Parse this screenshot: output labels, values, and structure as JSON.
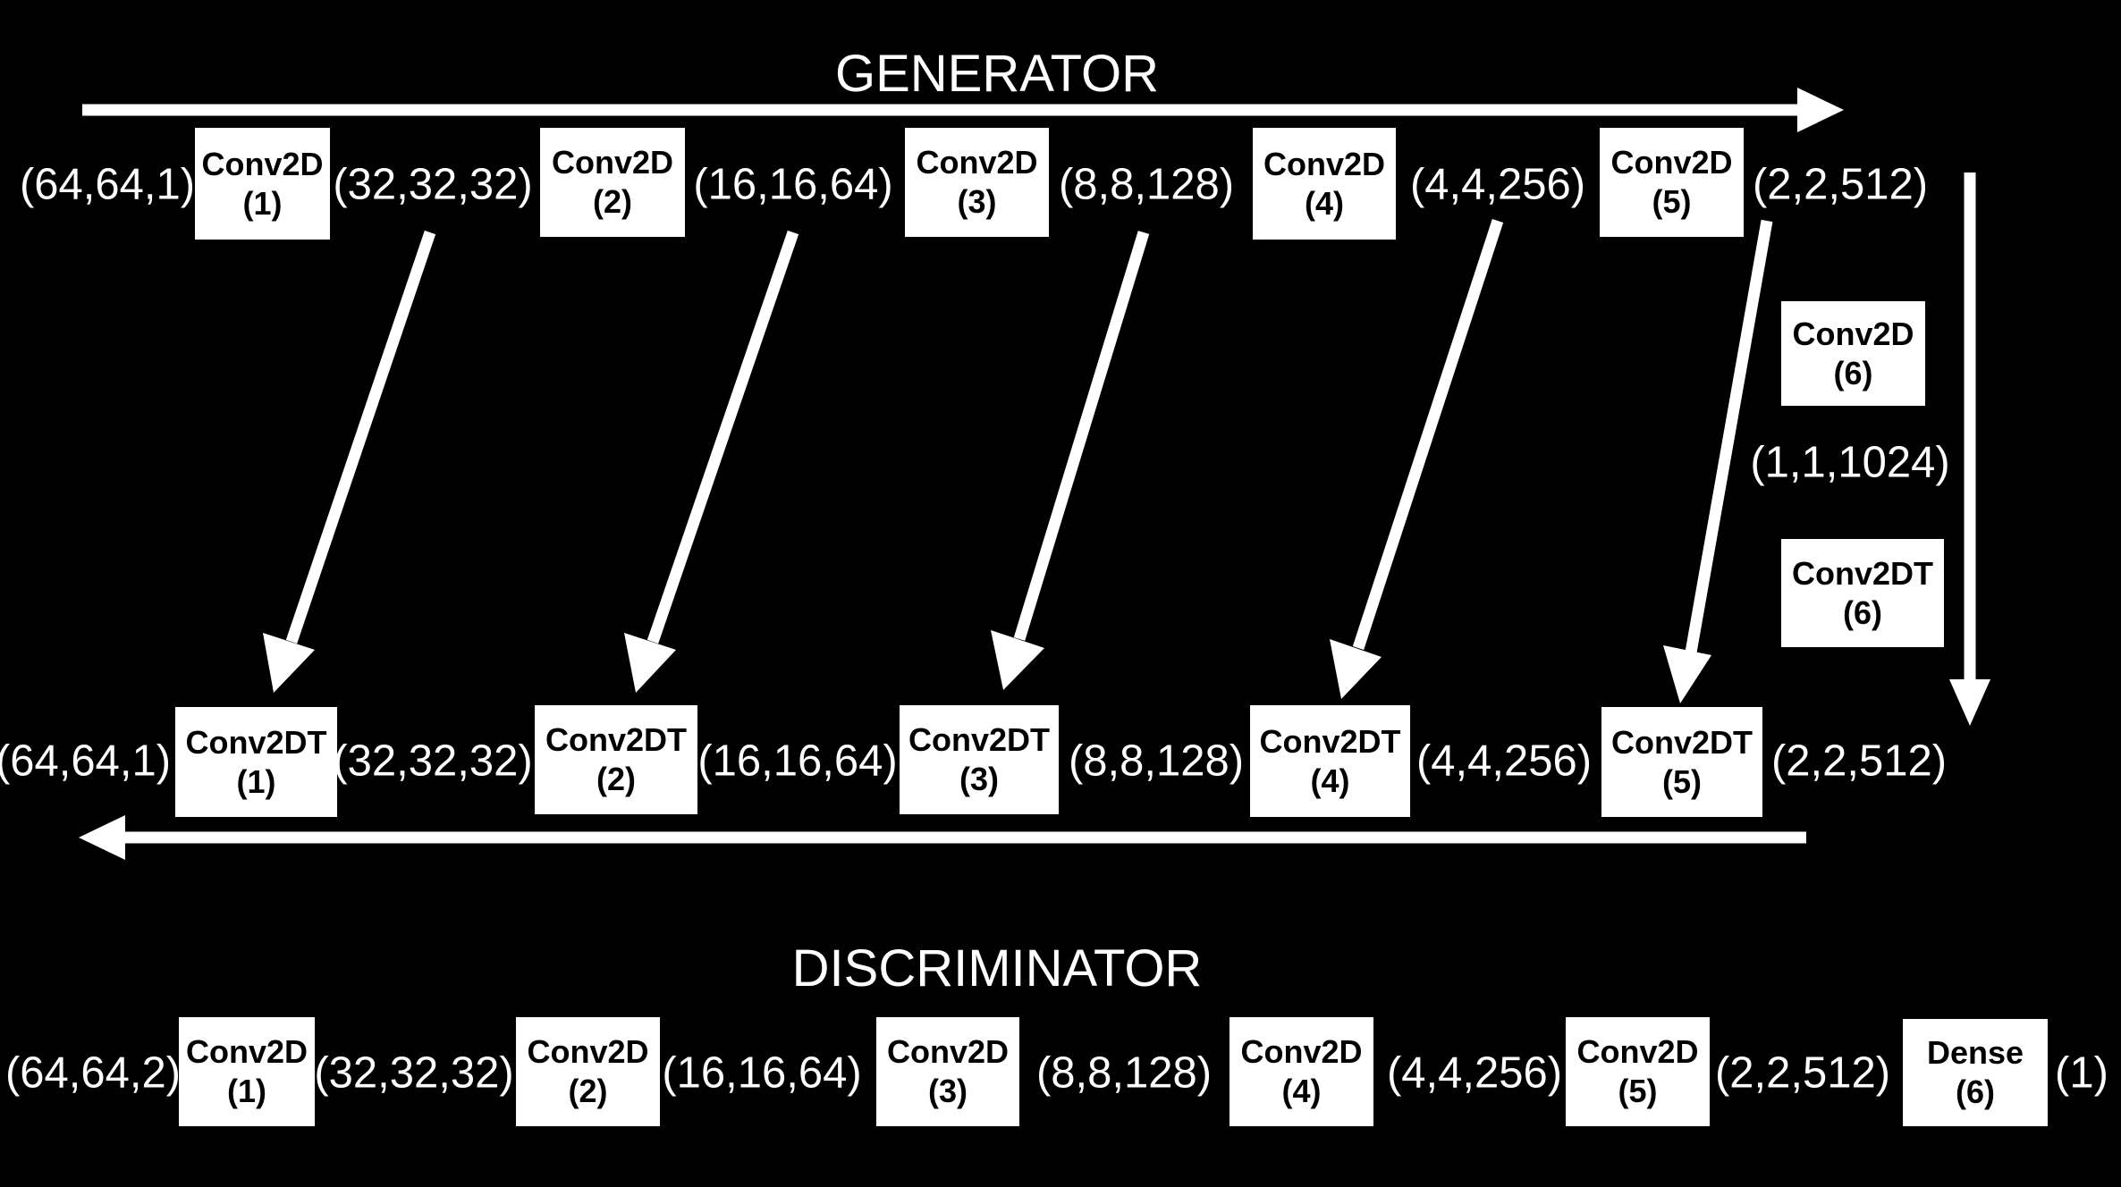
{
  "generator": {
    "title": "GENERATOR",
    "encoder": {
      "shapes": [
        "(64,64,1)",
        "(32,32,32)",
        "(16,16,64)",
        "(8,8,128)",
        "(4,4,256)",
        "(2,2,512)"
      ],
      "layers": [
        {
          "name": "Conv2D",
          "index": "(1)"
        },
        {
          "name": "Conv2D",
          "index": "(2)"
        },
        {
          "name": "Conv2D",
          "index": "(3)"
        },
        {
          "name": "Conv2D",
          "index": "(4)"
        },
        {
          "name": "Conv2D",
          "index": "(5)"
        }
      ]
    },
    "bottleneck": {
      "down_layer": {
        "name": "Conv2D",
        "index": "(6)"
      },
      "shape": "(1,1,1024)",
      "up_layer": {
        "name": "Conv2DT",
        "index": "(6)"
      }
    },
    "decoder": {
      "shapes": [
        "(64,64,1)",
        "(32,32,32)",
        "(16,16,64)",
        "(8,8,128)",
        "(4,4,256)",
        "(2,2,512)"
      ],
      "layers": [
        {
          "name": "Conv2DT",
          "index": "(1)"
        },
        {
          "name": "Conv2DT",
          "index": "(2)"
        },
        {
          "name": "Conv2DT",
          "index": "(3)"
        },
        {
          "name": "Conv2DT",
          "index": "(4)"
        },
        {
          "name": "Conv2DT",
          "index": "(5)"
        }
      ]
    }
  },
  "discriminator": {
    "title": "DISCRIMINATOR",
    "shapes": [
      "(64,64,2)",
      "(32,32,32)",
      "(16,16,64)",
      "(8,8,128)",
      "(4,4,256)",
      "(2,2,512)",
      "(1)"
    ],
    "layers": [
      {
        "name": "Conv2D",
        "index": "(1)"
      },
      {
        "name": "Conv2D",
        "index": "(2)"
      },
      {
        "name": "Conv2D",
        "index": "(3)"
      },
      {
        "name": "Conv2D",
        "index": "(4)"
      },
      {
        "name": "Conv2D",
        "index": "(5)"
      },
      {
        "name": "Dense",
        "index": "(6)"
      }
    ]
  },
  "colors": {
    "background": "#000000",
    "foreground": "#ffffff",
    "box_text": "#000000"
  }
}
